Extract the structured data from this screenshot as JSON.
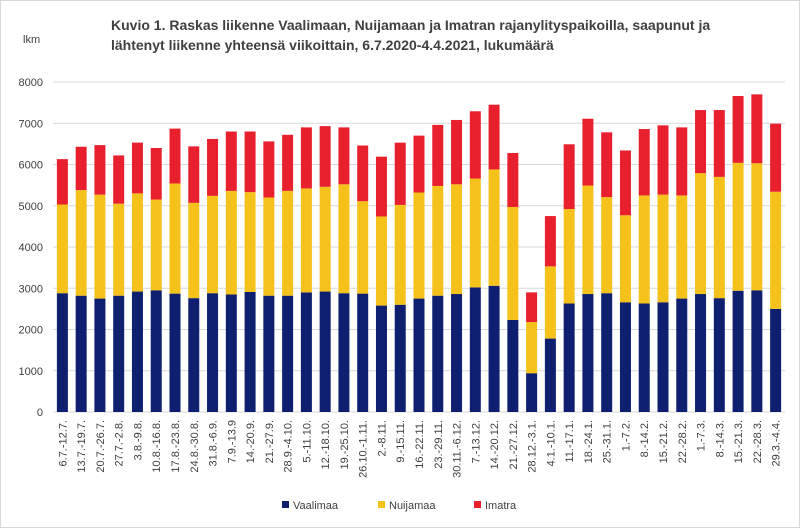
{
  "chart_data": {
    "type": "stacked-bar",
    "title": "Kuvio 1. Raskas liikenne Vaalimaan, Nuijamaan ja Imatran rajanylityspaikoilla, saapunut ja lähtenyt liikenne yhteensä viikoittain, 6.7.2020-4.4.2021, lukumäärä",
    "y_label": "lkm",
    "categories": [
      "6.7.-12.7.",
      "13.7.-19.7.",
      "20.7.-26.7.",
      "27.7.-2.8.",
      "3.8.-9.8.",
      "10.8.-16.8.",
      "17.8.-23.8.",
      "24.8.-30.8.",
      "31.8.-6.9.",
      "7.9.-13.9",
      "14.-20.9.",
      "21.-27.9.",
      "28.9.-4.10.",
      "5.-11.10.",
      "12.-18.10.",
      "19.-25.10.",
      "26.10.-1.11.",
      "2.-8.11.",
      "9.-15.11.",
      "16.-22.11.",
      "23.-29.11.",
      "30.11.-6.12.",
      "7.-13.12.",
      "14.-20.12.",
      "21.-27.12.",
      "28.12.-3.1.",
      "4.1.-10.1.",
      "11.-17.1.",
      "18.-24.1.",
      "25.-31.1.",
      "1.-7.2.",
      "8.-14.2.",
      "15.-21.2.",
      "22.-28.2.",
      "1.-7.3.",
      "8.-14.3.",
      "15.-21.3.",
      "22.-28.3.",
      "29.3.-4.4."
    ],
    "series": [
      {
        "name": "Vaalimaa",
        "color": "#0d1f6e",
        "values": [
          2880,
          2820,
          2750,
          2820,
          2920,
          2950,
          2870,
          2760,
          2880,
          2850,
          2910,
          2820,
          2820,
          2900,
          2920,
          2880,
          2870,
          2580,
          2600,
          2750,
          2820,
          2860,
          3020,
          3060,
          2230,
          940,
          1780,
          2630,
          2860,
          2880,
          2660,
          2630,
          2660,
          2750,
          2860,
          2760,
          2940,
          2950,
          2500
        ]
      },
      {
        "name": "Nuijamaa",
        "color": "#f5c21b",
        "values": [
          2150,
          2560,
          2520,
          2230,
          2380,
          2200,
          2670,
          2310,
          2360,
          2510,
          2420,
          2380,
          2540,
          2520,
          2540,
          2640,
          2240,
          2160,
          2420,
          2570,
          2660,
          2660,
          2640,
          2820,
          2740,
          1240,
          1750,
          2290,
          2630,
          2330,
          2110,
          2620,
          2610,
          2500,
          2930,
          2940,
          3100,
          3080,
          2840
        ]
      },
      {
        "name": "Imatra",
        "color": "#e8202e",
        "values": [
          1100,
          1050,
          1200,
          1170,
          1230,
          1250,
          1330,
          1370,
          1380,
          1440,
          1470,
          1360,
          1360,
          1480,
          1470,
          1380,
          1350,
          1450,
          1510,
          1380,
          1480,
          1560,
          1630,
          1570,
          1310,
          720,
          1220,
          1570,
          1620,
          1570,
          1570,
          1610,
          1680,
          1650,
          1530,
          1620,
          1620,
          1670,
          1650
        ]
      }
    ],
    "ylim": [
      0,
      8000
    ],
    "yticks": [
      0,
      1000,
      2000,
      3000,
      4000,
      5000,
      6000,
      7000,
      8000
    ],
    "grid": true,
    "legend": "bottom"
  }
}
